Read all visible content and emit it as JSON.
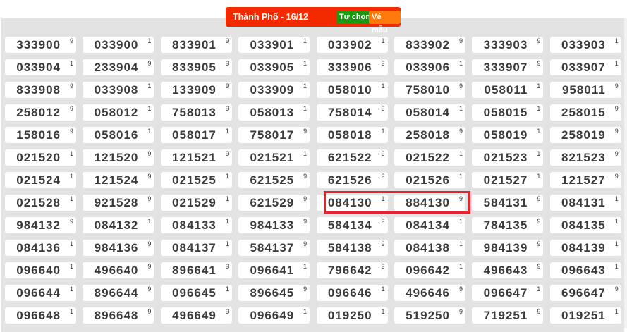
{
  "header": {
    "title": "Thành Phố - 16/12",
    "custom_button": "Tự chọn",
    "sample_button": "Vé mẫu"
  },
  "colors": {
    "header": "#f32a00",
    "custom_button": "#1a9a12",
    "sample_button": "#ff7a0a",
    "highlight": "#e8232c",
    "panel": "#e3e3e3"
  },
  "highlighted": [
    "084130",
    "884130"
  ],
  "tickets": [
    [
      [
        "333900",
        "9"
      ],
      [
        "033900",
        "1"
      ],
      [
        "833901",
        "9"
      ],
      [
        "033901",
        "1"
      ],
      [
        "033902",
        "1"
      ],
      [
        "833902",
        "9"
      ],
      [
        "333903",
        "9"
      ],
      [
        "033903",
        "1"
      ]
    ],
    [
      [
        "033904",
        "1"
      ],
      [
        "233904",
        "9"
      ],
      [
        "833905",
        "9"
      ],
      [
        "033905",
        "1"
      ],
      [
        "333906",
        "9"
      ],
      [
        "033906",
        "1"
      ],
      [
        "333907",
        "9"
      ],
      [
        "033907",
        "1"
      ]
    ],
    [
      [
        "833908",
        "9"
      ],
      [
        "033908",
        "1"
      ],
      [
        "133909",
        "9"
      ],
      [
        "033909",
        "1"
      ],
      [
        "058010",
        "1"
      ],
      [
        "758010",
        "9"
      ],
      [
        "058011",
        "1"
      ],
      [
        "958011",
        "9"
      ]
    ],
    [
      [
        "258012",
        "9"
      ],
      [
        "058012",
        "1"
      ],
      [
        "758013",
        "9"
      ],
      [
        "058013",
        "1"
      ],
      [
        "758014",
        "9"
      ],
      [
        "058014",
        "1"
      ],
      [
        "058015",
        "1"
      ],
      [
        "258015",
        "9"
      ]
    ],
    [
      [
        "158016",
        "9"
      ],
      [
        "058016",
        "1"
      ],
      [
        "058017",
        "1"
      ],
      [
        "758017",
        "9"
      ],
      [
        "058018",
        "1"
      ],
      [
        "258018",
        "9"
      ],
      [
        "058019",
        "1"
      ],
      [
        "258019",
        "9"
      ]
    ],
    [
      [
        "021520",
        "1"
      ],
      [
        "121520",
        "9"
      ],
      [
        "121521",
        "9"
      ],
      [
        "021521",
        "1"
      ],
      [
        "621522",
        "9"
      ],
      [
        "021522",
        "1"
      ],
      [
        "021523",
        "1"
      ],
      [
        "821523",
        "9"
      ]
    ],
    [
      [
        "021524",
        "1"
      ],
      [
        "121524",
        "9"
      ],
      [
        "021525",
        "1"
      ],
      [
        "621525",
        "9"
      ],
      [
        "621526",
        "9"
      ],
      [
        "021526",
        "1"
      ],
      [
        "021527",
        "1"
      ],
      [
        "121527",
        "9"
      ]
    ],
    [
      [
        "021528",
        "1"
      ],
      [
        "921528",
        "9"
      ],
      [
        "021529",
        "1"
      ],
      [
        "621529",
        "9"
      ],
      [
        "084130",
        "1"
      ],
      [
        "884130",
        "9"
      ],
      [
        "584131",
        "9"
      ],
      [
        "084131",
        "1"
      ]
    ],
    [
      [
        "984132",
        "9"
      ],
      [
        "084132",
        "1"
      ],
      [
        "084133",
        "1"
      ],
      [
        "984133",
        "9"
      ],
      [
        "584134",
        "9"
      ],
      [
        "084134",
        "1"
      ],
      [
        "784135",
        "9"
      ],
      [
        "084135",
        "1"
      ]
    ],
    [
      [
        "084136",
        "1"
      ],
      [
        "984136",
        "9"
      ],
      [
        "084137",
        "1"
      ],
      [
        "584137",
        "9"
      ],
      [
        "584138",
        "9"
      ],
      [
        "084138",
        "1"
      ],
      [
        "984139",
        "9"
      ],
      [
        "084139",
        "1"
      ]
    ],
    [
      [
        "096640",
        "1"
      ],
      [
        "496640",
        "9"
      ],
      [
        "896641",
        "9"
      ],
      [
        "096641",
        "1"
      ],
      [
        "796642",
        "9"
      ],
      [
        "096642",
        "1"
      ],
      [
        "496643",
        "9"
      ],
      [
        "096643",
        "1"
      ]
    ],
    [
      [
        "096644",
        "1"
      ],
      [
        "896644",
        "9"
      ],
      [
        "096645",
        "1"
      ],
      [
        "896645",
        "9"
      ],
      [
        "096646",
        "1"
      ],
      [
        "496646",
        "9"
      ],
      [
        "096647",
        "1"
      ],
      [
        "696647",
        "9"
      ]
    ],
    [
      [
        "096648",
        "1"
      ],
      [
        "896648",
        "9"
      ],
      [
        "496649",
        "9"
      ],
      [
        "096649",
        "1"
      ],
      [
        "019250",
        "1"
      ],
      [
        "519250",
        "9"
      ],
      [
        "719251",
        "9"
      ],
      [
        "019251",
        "1"
      ]
    ]
  ]
}
